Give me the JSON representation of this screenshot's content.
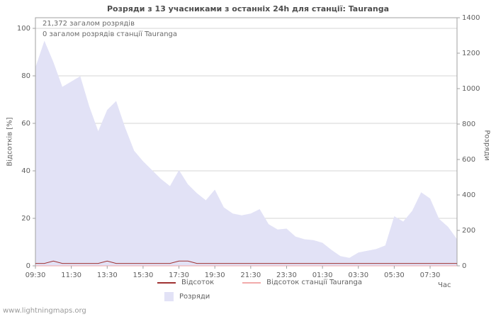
{
  "page": {
    "title": "Розряди з 13 учасниками з останніх 24h для станції: Tauranga",
    "watermark": "www.lightningmaps.org"
  },
  "annotations": {
    "total_strokes": "21,372 загалом розрядів",
    "station_strokes": "0 загалом розрядів станції Tauranga"
  },
  "axes": {
    "left_title": "Відсотків  [%]",
    "right_title": "Розряди",
    "x_title": "Час"
  },
  "legend": {
    "percentage": "Відсоток",
    "station_percentage": "Відсоток станції Tauranga",
    "strokes": "Розряди"
  },
  "colors": {
    "area_fill": "#e2e2f6",
    "pct_line": "#a03232",
    "station_line": "#f2aaaa",
    "grid": "#d4d4d4",
    "axis": "#a0a0a0",
    "text": "#606060"
  },
  "chart_data": {
    "type": "area",
    "title": "Розряди з 13 учасниками з останніх 24h для станції: Tauranga",
    "xlabel": "Час",
    "legend_position": "bottom",
    "grid": "horizontal",
    "left_axis": {
      "label": "Відсотків [%]",
      "range": [
        0,
        100
      ],
      "ticks": [
        0,
        20,
        40,
        60,
        80,
        100
      ]
    },
    "right_axis": {
      "label": "Розряди",
      "range": [
        0,
        1400
      ],
      "ticks": [
        0,
        200,
        400,
        600,
        800,
        1000,
        1200,
        1400
      ]
    },
    "x_tick_labels": [
      "09:30",
      "11:30",
      "13:30",
      "15:30",
      "17:30",
      "19:30",
      "21:30",
      "23:30",
      "01:30",
      "03:30",
      "05:30",
      "07:30"
    ],
    "x": [
      "09:30",
      "10:00",
      "10:30",
      "11:00",
      "11:30",
      "12:00",
      "12:30",
      "13:00",
      "13:30",
      "14:00",
      "14:30",
      "15:00",
      "15:30",
      "16:00",
      "16:30",
      "17:00",
      "17:30",
      "18:00",
      "18:30",
      "19:00",
      "19:30",
      "20:00",
      "20:30",
      "21:00",
      "21:30",
      "22:00",
      "22:30",
      "23:00",
      "23:30",
      "00:00",
      "00:30",
      "01:00",
      "01:30",
      "02:00",
      "02:30",
      "03:00",
      "03:30",
      "04:00",
      "04:30",
      "05:00",
      "05:30",
      "06:00",
      "06:30",
      "07:00",
      "07:30",
      "08:00",
      "08:30",
      "09:00"
    ],
    "series": [
      {
        "name": "Розряди",
        "type": "area",
        "axis": "right",
        "values": [
          1120,
          1270,
          1150,
          1010,
          1040,
          1070,
          900,
          760,
          880,
          930,
          780,
          650,
          590,
          540,
          490,
          450,
          540,
          460,
          410,
          370,
          430,
          330,
          295,
          285,
          295,
          320,
          235,
          205,
          210,
          165,
          150,
          145,
          130,
          90,
          55,
          45,
          75,
          85,
          95,
          115,
          280,
          250,
          310,
          415,
          380,
          265,
          220,
          150
        ]
      },
      {
        "name": "Відсоток",
        "type": "line",
        "axis": "left",
        "values": [
          1,
          1,
          2,
          1,
          1,
          1,
          1,
          1,
          2,
          1,
          1,
          1,
          1,
          1,
          1,
          1,
          2,
          2,
          1,
          1,
          1,
          1,
          1,
          1,
          1,
          1,
          1,
          1,
          1,
          1,
          1,
          1,
          1,
          1,
          1,
          1,
          1,
          1,
          1,
          1,
          1,
          1,
          1,
          1,
          1,
          1,
          1,
          1
        ]
      },
      {
        "name": "Відсоток станції Tauranga",
        "type": "line",
        "axis": "left",
        "values": [
          0,
          0,
          0,
          0,
          0,
          0,
          0,
          0,
          0,
          0,
          0,
          0,
          0,
          0,
          0,
          0,
          0,
          0,
          0,
          0,
          0,
          0,
          0,
          0,
          0,
          0,
          0,
          0,
          0,
          0,
          0,
          0,
          0,
          0,
          0,
          0,
          0,
          0,
          0,
          0,
          0,
          0,
          0,
          0,
          0,
          0,
          0,
          0
        ]
      }
    ]
  }
}
